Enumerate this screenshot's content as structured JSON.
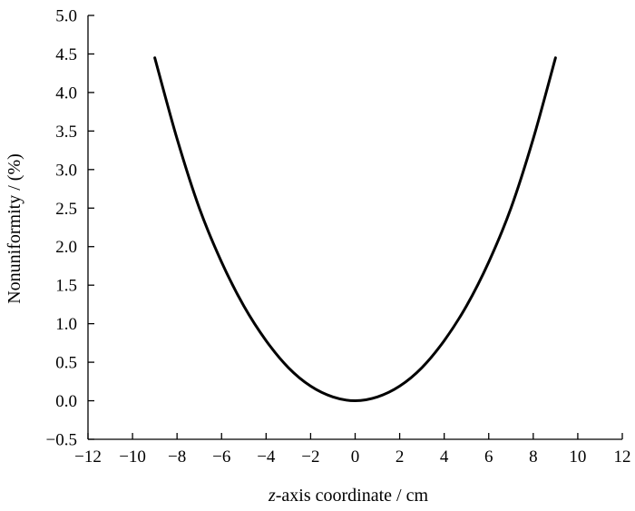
{
  "chart_data": {
    "type": "line",
    "xlabel_prefix": "z",
    "xlabel_rest": "-axis coordinate / cm",
    "ylabel": "Nonuniformity / (%)",
    "xlim": [
      -12,
      12
    ],
    "ylim": [
      -0.5,
      5.0
    ],
    "x_ticks": [
      -12,
      -10,
      -8,
      -6,
      -4,
      -2,
      0,
      2,
      4,
      6,
      8,
      10,
      12
    ],
    "x_tick_labels": [
      "−12",
      "−10",
      "−8",
      "−6",
      "−4",
      "−2",
      "0",
      "2",
      "4",
      "6",
      "8",
      "10",
      "12"
    ],
    "y_ticks": [
      -0.5,
      0.0,
      0.5,
      1.0,
      1.5,
      2.0,
      2.5,
      3.0,
      3.5,
      4.0,
      4.5,
      5.0
    ],
    "y_tick_labels": [
      "−0.5",
      "0.0",
      "0.5",
      "1.0",
      "1.5",
      "2.0",
      "2.5",
      "3.0",
      "3.5",
      "4.0",
      "4.5",
      "5.0"
    ],
    "grid": false,
    "series": [
      {
        "color": "#000000",
        "x": [
          -9,
          -8,
          -7,
          -6,
          -5,
          -4,
          -3,
          -2,
          -1,
          0,
          1,
          2,
          3,
          4,
          5,
          6,
          7,
          8,
          9
        ],
        "y": [
          4.45,
          3.4,
          2.5,
          1.8,
          1.23,
          0.78,
          0.43,
          0.19,
          0.05,
          0.0,
          0.05,
          0.19,
          0.43,
          0.78,
          1.23,
          1.8,
          2.5,
          3.4,
          4.45
        ]
      }
    ]
  }
}
